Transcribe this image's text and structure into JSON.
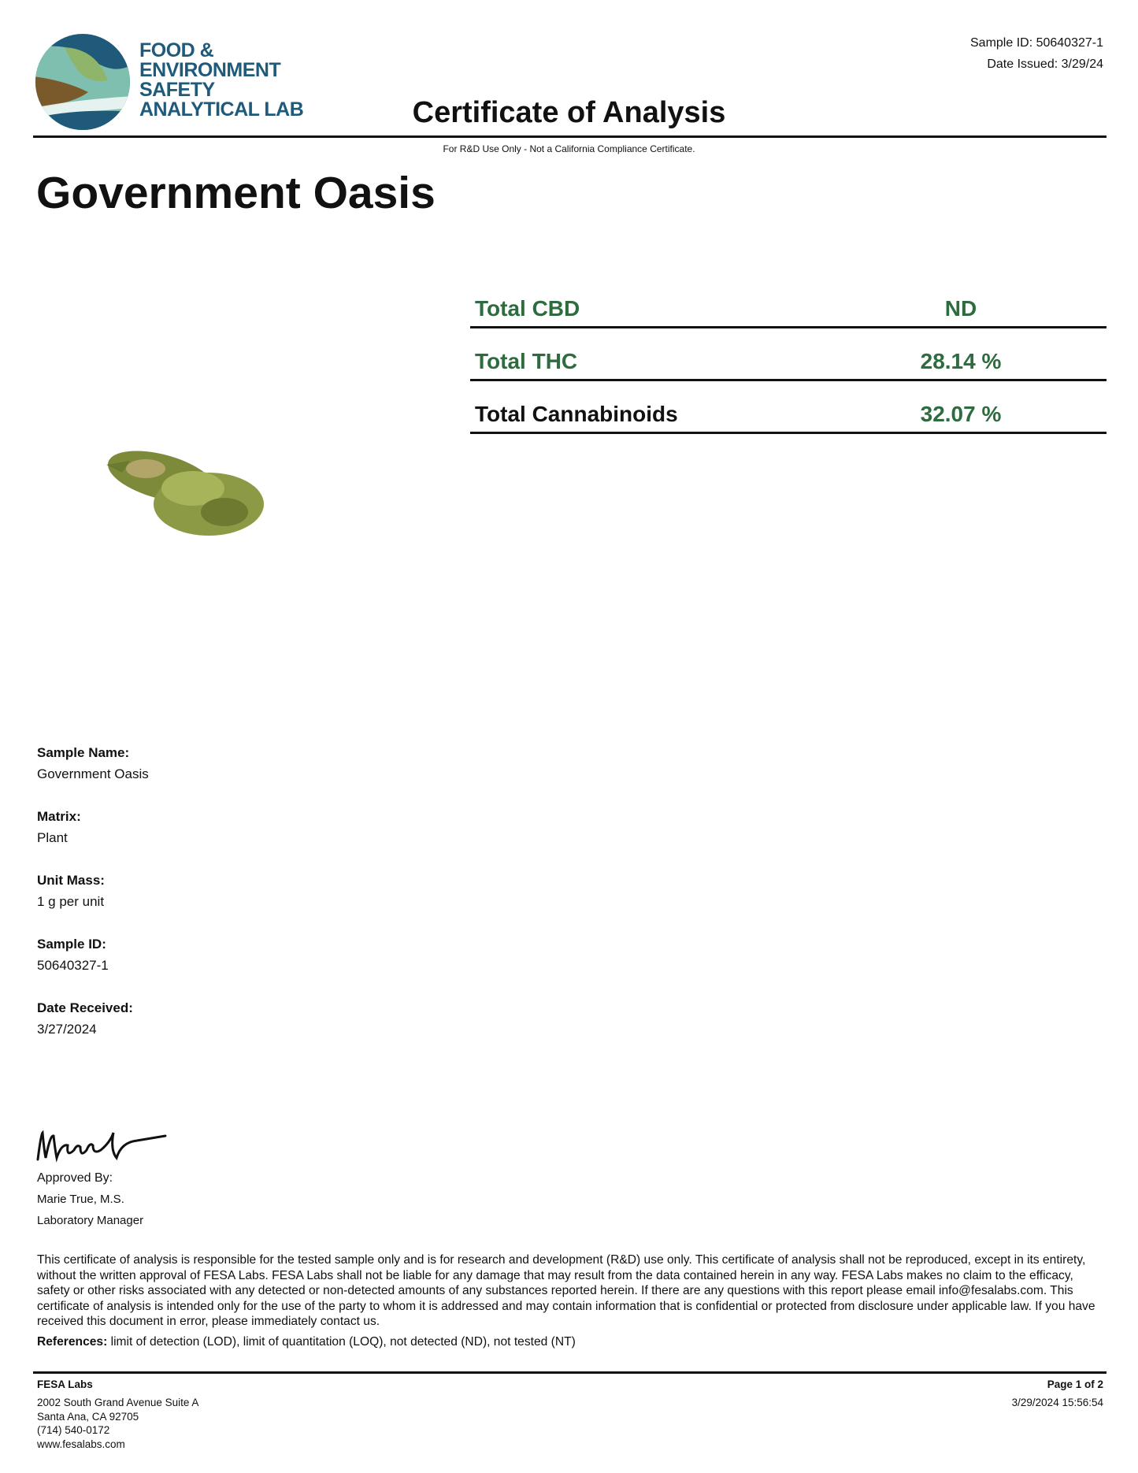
{
  "logo": {
    "text_lines": [
      "FOOD &",
      "ENVIRONMENT",
      "SAFETY",
      "ANALYTICAL LAB"
    ],
    "colors": {
      "navy": "#1f5a7a",
      "teal": "#7fbfb0",
      "green": "#8fb56a",
      "brown": "#7a5a2a"
    }
  },
  "header": {
    "sample_id": "Sample ID: 50640327-1",
    "date_issued": "Date Issued: 3/29/24",
    "title": "Certificate of Analysis",
    "subtitle": "For R&D Use Only - Not a California Compliance Certificate."
  },
  "product_name": "Government Oasis",
  "summary": [
    {
      "label": "Total CBD",
      "value": "ND",
      "label_color": "#2e6b3f"
    },
    {
      "label": "Total THC",
      "value": "28.14 %",
      "label_color": "#2e6b3f"
    },
    {
      "label": "Total Cannabinoids",
      "value": "32.07 %",
      "label_color": "#111111"
    }
  ],
  "sample_info": [
    {
      "label": "Sample Name:",
      "value": "Government Oasis"
    },
    {
      "label": "Matrix:",
      "value": "Plant"
    },
    {
      "label": "Unit Mass:",
      "value": "1 g per unit"
    },
    {
      "label": "Sample ID:",
      "value": "50640327-1"
    },
    {
      "label": "Date Received:",
      "value": "3/27/2024"
    }
  ],
  "approval": {
    "signature": "Marie",
    "approved_by": "Approved By:",
    "name": "Marie True, M.S.",
    "role": "Laboratory Manager"
  },
  "disclaimer": "This certificate of analysis is responsible for the tested sample only and is for research and development (R&D) use only. This certificate of analysis shall not be reproduced, except in its entirety, without the written approval of FESA Labs. FESA Labs shall not be liable for any damage that may result from the data contained herein in any way. FESA Labs makes no claim to the efficacy, safety or other risks associated with any detected or non-detected amounts of any substances reported herein. If there are any questions with this report please email info@fesalabs.com. This certificate of analysis is intended only for the use of the party to whom it is addressed and may contain information that is confidential or protected from disclosure under applicable law. If you have received this document in error, please immediately contact us.",
  "references": {
    "label": "References:",
    "text": " limit of detection (LOD), limit of quantitation (LOQ), not detected (ND), not tested (NT)"
  },
  "footer": {
    "company": "FESA Labs",
    "address1": "2002 South Grand Avenue Suite A",
    "address2": "Santa Ana, CA 92705",
    "phone": "(714) 540-0172",
    "website": "www.fesalabs.com",
    "page": "Page 1 of 2",
    "timestamp": "3/29/2024 15:56:54"
  }
}
